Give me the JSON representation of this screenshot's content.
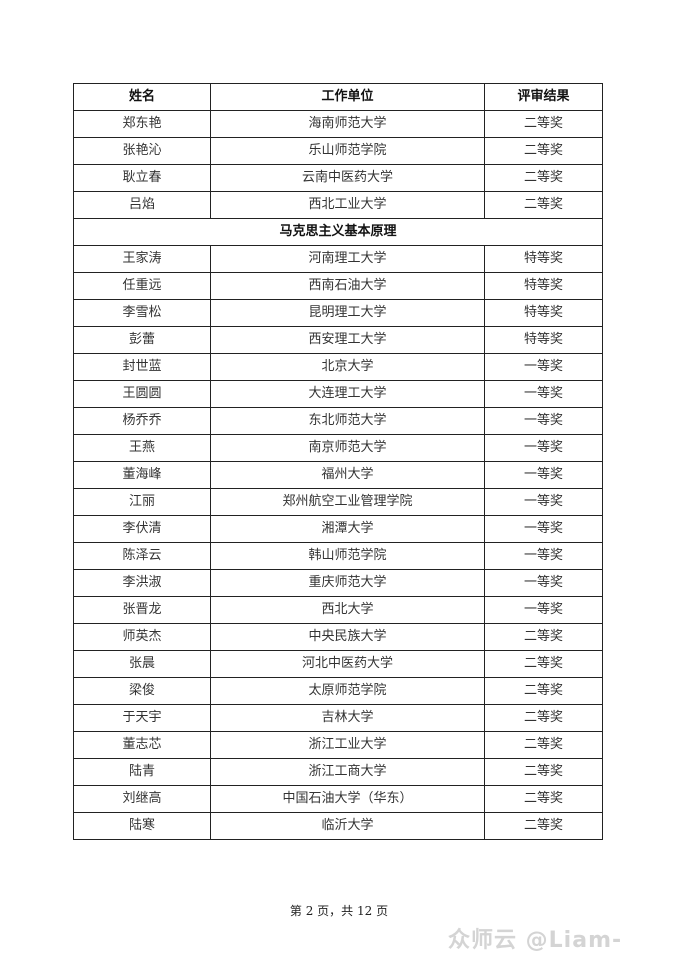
{
  "table": {
    "headers": [
      "姓名",
      "工作单位",
      "评审结果"
    ],
    "sections": [
      {
        "title": "",
        "rows": [
          [
            "郑东艳",
            "海南师范大学",
            "二等奖"
          ],
          [
            "张艳沁",
            "乐山师范学院",
            "二等奖"
          ],
          [
            "耿立春",
            "云南中医药大学",
            "二等奖"
          ],
          [
            "吕焰",
            "西北工业大学",
            "二等奖"
          ]
        ]
      },
      {
        "title": "马克思主义基本原理",
        "rows": [
          [
            "王家涛",
            "河南理工大学",
            "特等奖"
          ],
          [
            "任重远",
            "西南石油大学",
            "特等奖"
          ],
          [
            "李雪松",
            "昆明理工大学",
            "特等奖"
          ],
          [
            "彭蕾",
            "西安理工大学",
            "特等奖"
          ],
          [
            "封世蓝",
            "北京大学",
            "一等奖"
          ],
          [
            "王圆圆",
            "大连理工大学",
            "一等奖"
          ],
          [
            "杨乔乔",
            "东北师范大学",
            "一等奖"
          ],
          [
            "王燕",
            "南京师范大学",
            "一等奖"
          ],
          [
            "董海峰",
            "福州大学",
            "一等奖"
          ],
          [
            "江丽",
            "郑州航空工业管理学院",
            "一等奖"
          ],
          [
            "李伏清",
            "湘潭大学",
            "一等奖"
          ],
          [
            "陈泽云",
            "韩山师范学院",
            "一等奖"
          ],
          [
            "李洪淑",
            "重庆师范大学",
            "一等奖"
          ],
          [
            "张晋龙",
            "西北大学",
            "一等奖"
          ],
          [
            "师英杰",
            "中央民族大学",
            "二等奖"
          ],
          [
            "张晨",
            "河北中医药大学",
            "二等奖"
          ],
          [
            "梁俊",
            "太原师范学院",
            "二等奖"
          ],
          [
            "于天宇",
            "吉林大学",
            "二等奖"
          ],
          [
            "董志芯",
            "浙江工业大学",
            "二等奖"
          ],
          [
            "陆青",
            "浙江工商大学",
            "二等奖"
          ],
          [
            "刘继高",
            "中国石油大学（华东）",
            "二等奖"
          ],
          [
            "陆寒",
            "临沂大学",
            "二等奖"
          ]
        ]
      }
    ]
  },
  "footer": {
    "page_label": "第 2 页，共 12 页"
  },
  "watermark": {
    "text": "众师云 @Liam-"
  }
}
